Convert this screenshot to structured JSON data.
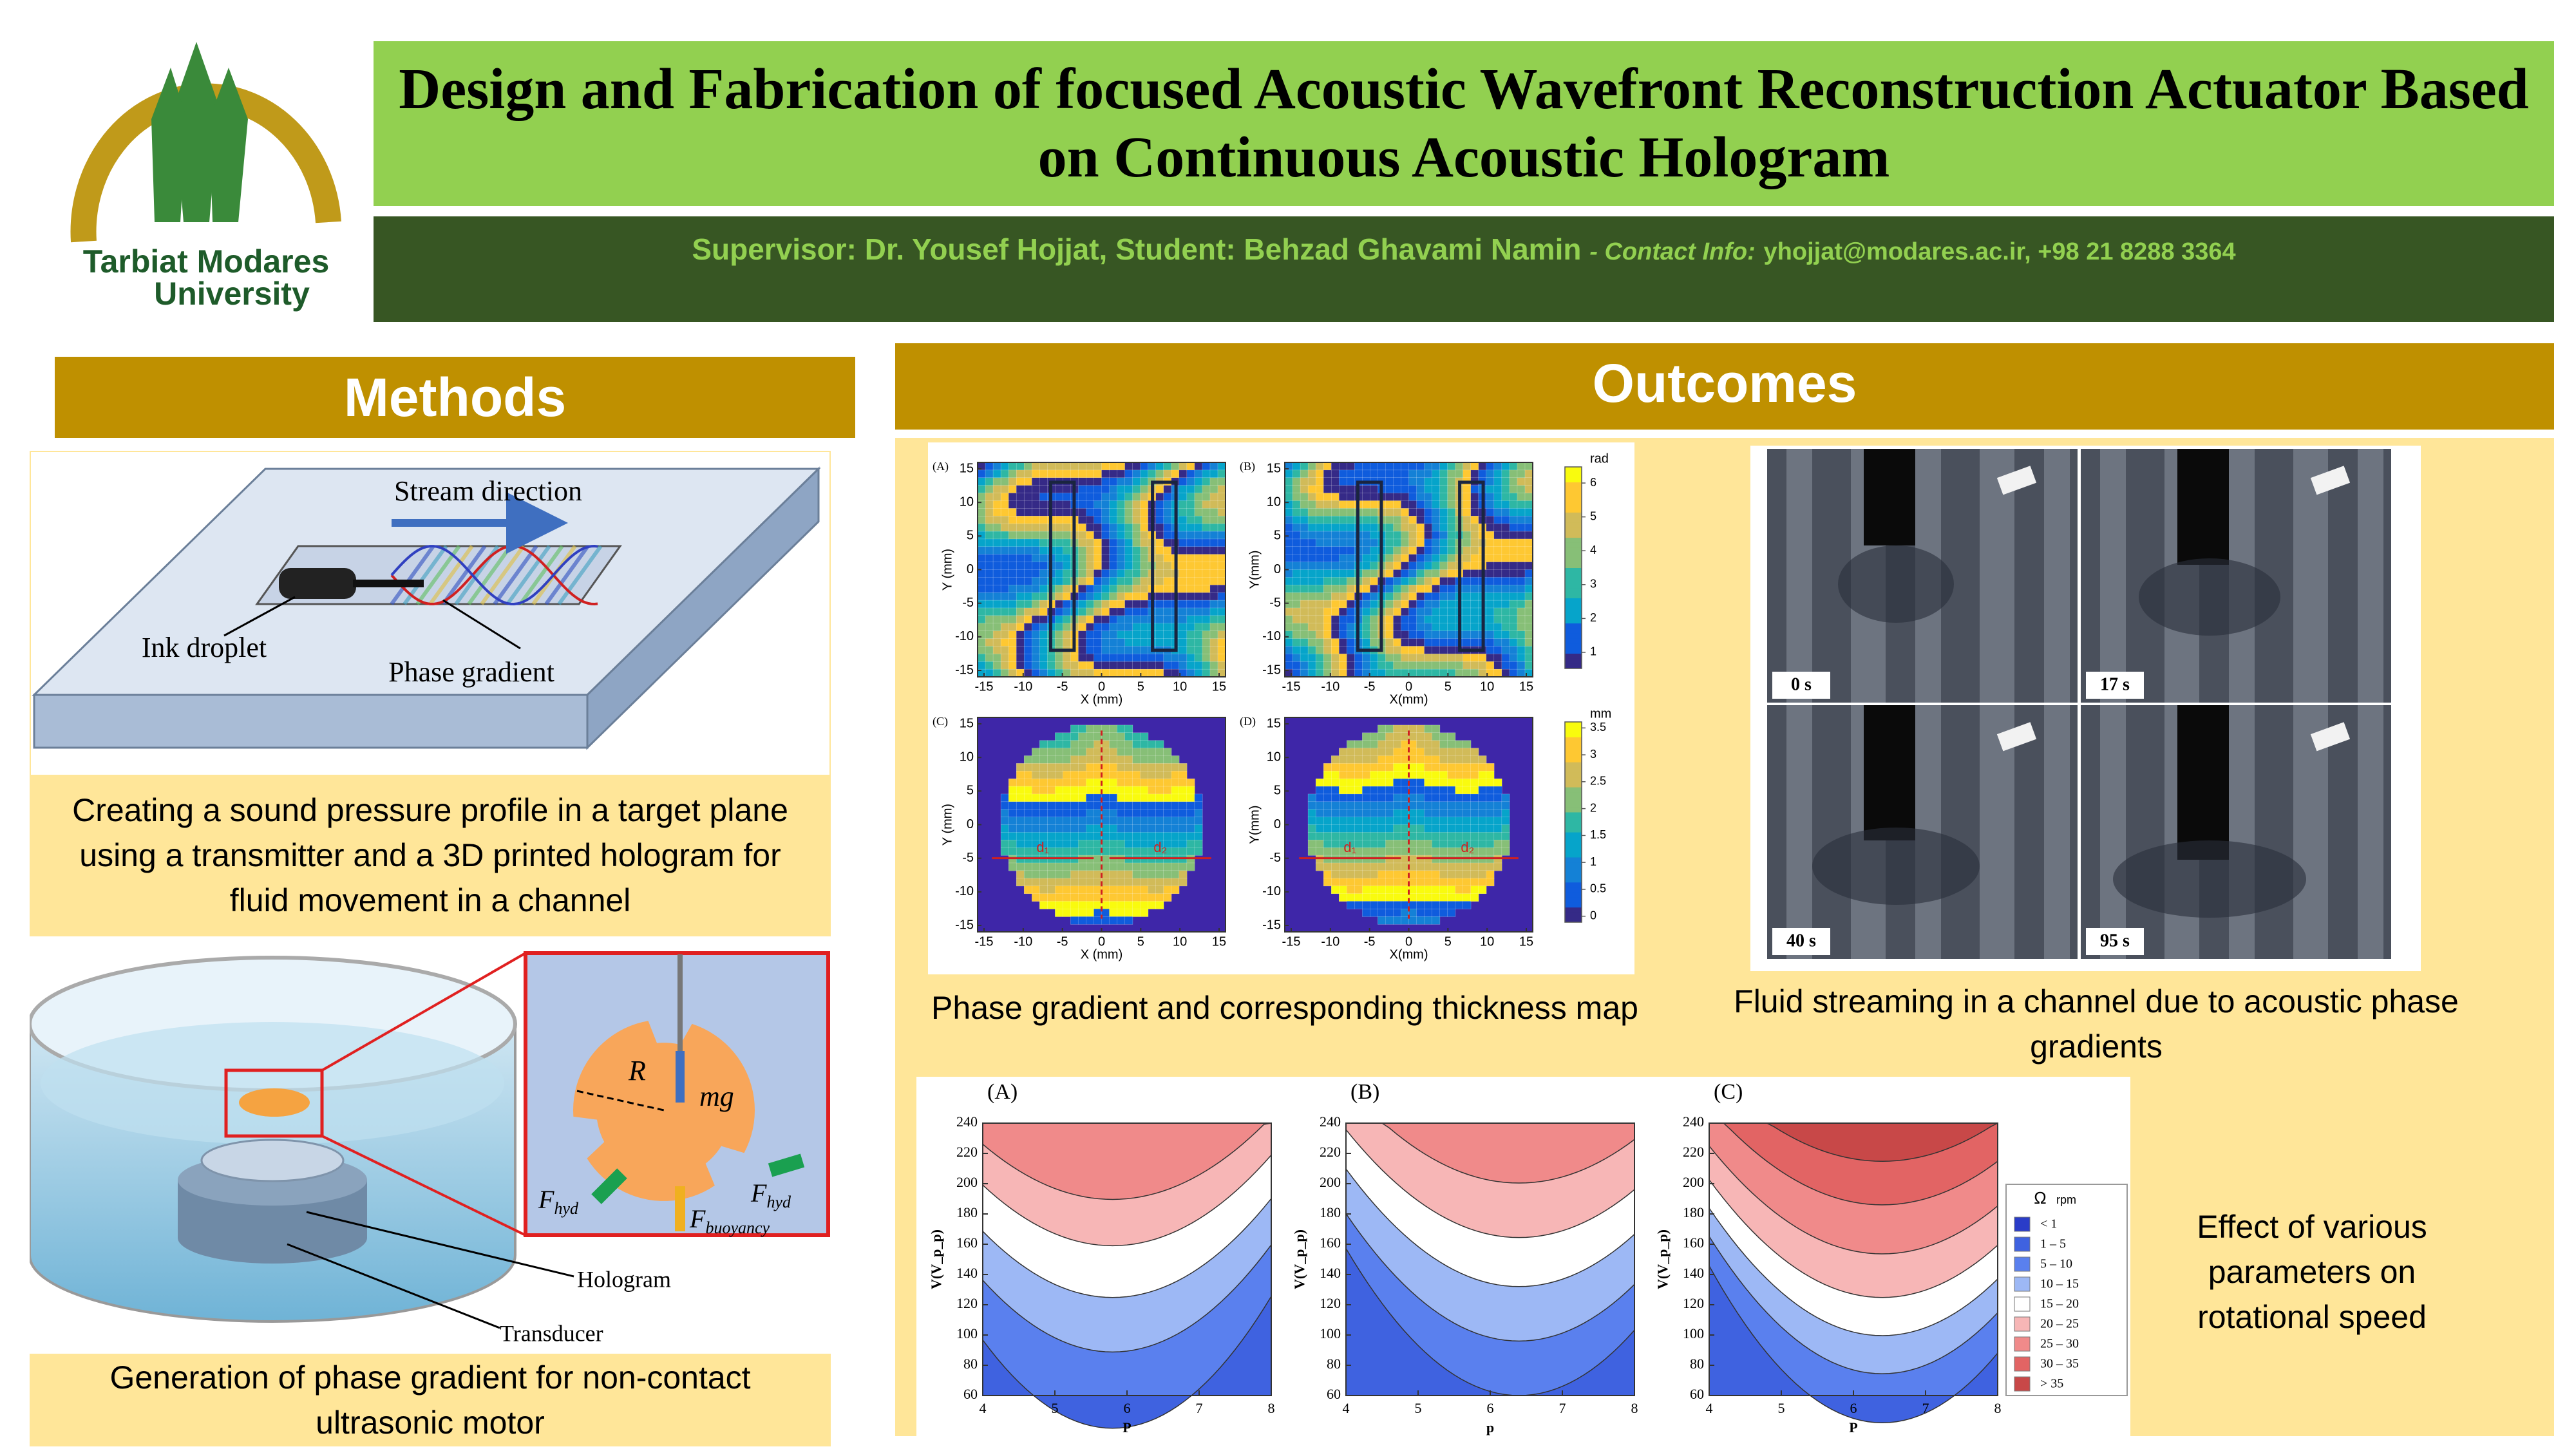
{
  "header": {
    "logo_line1": "Tarbiat Modares",
    "logo_line2": "University",
    "title": "Design and Fabrication of focused Acoustic Wavefront Reconstruction Actuator Based on Continuous Acoustic Hologram",
    "supervisor": "Supervisor: Dr. Yousef Hojjat, Student: Behzad Ghavami Namin",
    "contact_label": "- Contact Info:",
    "contact": "yhojjat@modares.ac.ir, +98 21 8288 3364"
  },
  "methods": {
    "heading": "Methods",
    "figure1": {
      "stream_label": "Stream direction",
      "droplet_label": "Ink droplet",
      "gradient_label": "Phase gradient"
    },
    "caption1": "Creating a sound pressure profile in a target plane using a transmitter and a 3D printed hologram for fluid movement in a channel",
    "figure2": {
      "radius_label": "R",
      "weight_label": "mg",
      "hyd_force": {
        "symbol": "F",
        "subscript": "hyd"
      },
      "buoyancy_force": {
        "symbol": "F",
        "subscript": "buoyancy"
      },
      "hologram_label": "Hologram",
      "transducer_label": "Transducer"
    },
    "caption2": "Generation of phase gradient for non-contact ultrasonic motor"
  },
  "outcomes": {
    "heading": "Outcomes",
    "phase_figure": {
      "panels": [
        "(A)",
        "(B)",
        "(C)",
        "(D)"
      ],
      "x_labels": [
        "X (mm)",
        "X(mm)",
        "X (mm)",
        "X(mm)"
      ],
      "y_labels": [
        "Y (mm)",
        "Y(mm)",
        "Y (mm)",
        "Y(mm)"
      ],
      "ticks": [
        -15,
        -10,
        -5,
        0,
        5,
        10,
        15
      ],
      "colorbar_phase": {
        "unit": "rad",
        "ticks": [
          1,
          2,
          3,
          4,
          5,
          6
        ]
      },
      "colorbar_thickness": {
        "unit": "mm",
        "ticks": [
          0,
          0.5,
          1,
          1.5,
          2,
          2.5,
          3,
          3.5
        ]
      },
      "distance_labels": [
        "d₁",
        "d₂"
      ]
    },
    "phase_caption": "Phase gradient and corresponding thickness map",
    "streaming_figure": {
      "times": [
        "0 s",
        "17 s",
        "40 s",
        "95 s"
      ]
    },
    "streaming_caption": "Fluid streaming in a channel due to acoustic phase gradients",
    "contour_figure": {
      "panels": [
        "(A)",
        "(B)",
        "(C)"
      ],
      "x_labels": [
        "P",
        "p",
        "P"
      ],
      "y_label": "V(V_p_p)",
      "xticks": [
        4,
        5,
        6,
        7,
        8
      ],
      "yticks": [
        60,
        80,
        100,
        120,
        140,
        160,
        180,
        200,
        220,
        240
      ],
      "legend": {
        "symbol": "Ω",
        "unit": "rpm",
        "entries": [
          {
            "label": "<  1",
            "color": "#2a3cc8"
          },
          {
            "label": "1  –  5",
            "color": "#3f62e0"
          },
          {
            "label": "5  –  10",
            "color": "#5a80ee"
          },
          {
            "label": "10  –  15",
            "color": "#9db8f5"
          },
          {
            "label": "15  –  20",
            "color": "#ffffff"
          },
          {
            "label": "20  –  25",
            "color": "#f7b6b6"
          },
          {
            "label": "25  –  30",
            "color": "#f08a8a"
          },
          {
            "label": "30  –  35",
            "color": "#e26464"
          },
          {
            "label": ">  35",
            "color": "#c84848"
          }
        ]
      }
    },
    "contour_caption": "Effect of various parameters on rotational speed"
  }
}
